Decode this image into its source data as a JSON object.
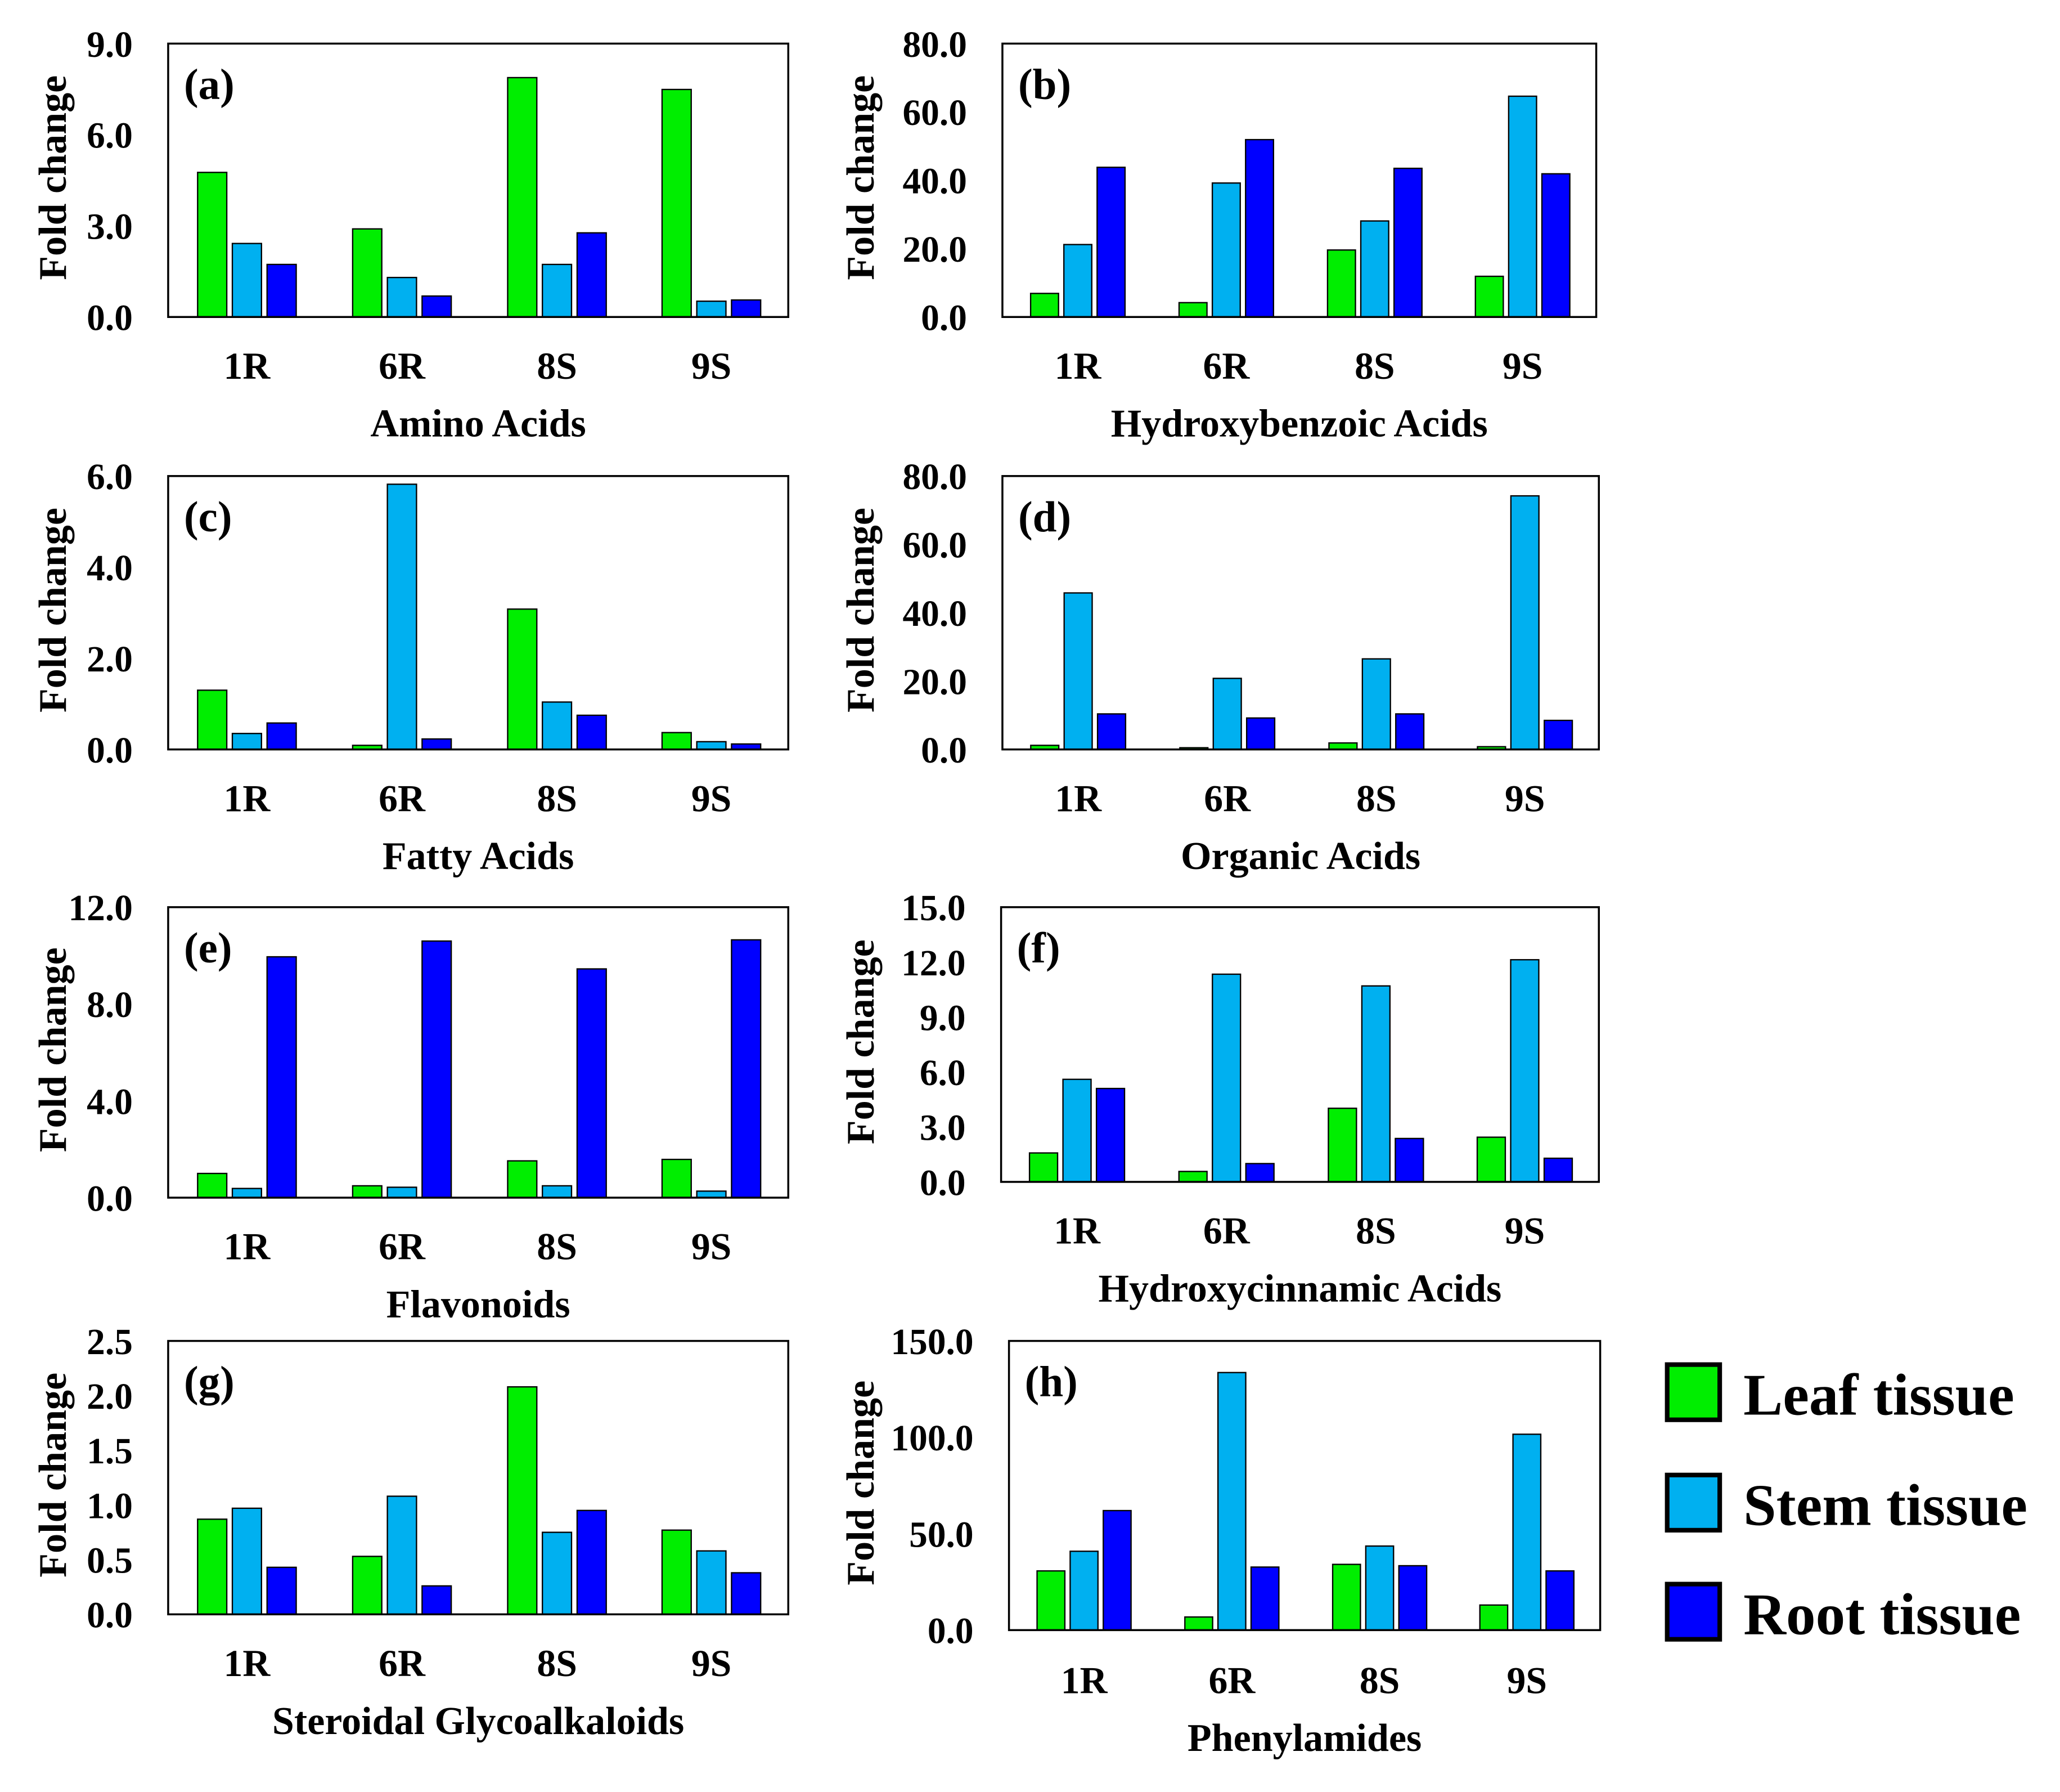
{
  "legend": {
    "items": [
      {
        "label": "Leaf tissue",
        "color": "#00ee00"
      },
      {
        "label": "Stem tissue",
        "color": "#00b0f0"
      },
      {
        "label": "Root tissue",
        "color": "#0000ff"
      }
    ],
    "placement": "right"
  },
  "chart_data": [
    {
      "type": "bar",
      "panel": "(a)",
      "xlabel": "Amino Acids",
      "ylabel": "Fold change",
      "categories": [
        "1R",
        "6R",
        "8S",
        "9S"
      ],
      "ylim": [
        0,
        9
      ],
      "yticks": [
        "0.0",
        "3.0",
        "6.0",
        "9.0"
      ],
      "series": [
        {
          "name": "Leaf tissue",
          "values": [
            4.76,
            2.9,
            7.88,
            7.49
          ]
        },
        {
          "name": "Stem tissue",
          "values": [
            2.42,
            1.3,
            1.73,
            0.52
          ]
        },
        {
          "name": "Root tissue",
          "values": [
            1.73,
            0.69,
            2.77,
            0.56
          ]
        }
      ]
    },
    {
      "type": "bar",
      "panel": "(b)",
      "xlabel": "Hydroxybenzoic Acids",
      "ylabel": "Fold change",
      "categories": [
        "1R",
        "6R",
        "8S",
        "9S"
      ],
      "ylim": [
        0,
        80
      ],
      "yticks": [
        "0.0",
        "20.0",
        "40.0",
        "60.0",
        "80.0"
      ],
      "series": [
        {
          "name": "Leaf tissue",
          "values": [
            6.9,
            4.2,
            19.6,
            11.9
          ]
        },
        {
          "name": "Stem tissue",
          "values": [
            21.2,
            39.2,
            28.1,
            64.6
          ]
        },
        {
          "name": "Root tissue",
          "values": [
            43.8,
            51.9,
            43.5,
            41.9
          ]
        }
      ]
    },
    {
      "type": "bar",
      "panel": "(c)",
      "xlabel": "Fatty Acids",
      "ylabel": "Fold change",
      "categories": [
        "1R",
        "6R",
        "8S",
        "9S"
      ],
      "ylim": [
        0,
        6
      ],
      "yticks": [
        "0.0",
        "2.0",
        "4.0",
        "6.0"
      ],
      "series": [
        {
          "name": "Leaf tissue",
          "values": [
            1.3,
            0.09,
            3.08,
            0.37
          ]
        },
        {
          "name": "Stem tissue",
          "values": [
            0.35,
            5.82,
            1.04,
            0.17
          ]
        },
        {
          "name": "Root tissue",
          "values": [
            0.58,
            0.23,
            0.75,
            0.12
          ]
        }
      ]
    },
    {
      "type": "bar",
      "panel": "(d)",
      "xlabel": "Organic Acids",
      "ylabel": "Fold change",
      "categories": [
        "1R",
        "6R",
        "8S",
        "9S"
      ],
      "ylim": [
        0,
        80
      ],
      "yticks": [
        "0.0",
        "20.0",
        "40.0",
        "60.0",
        "80.0"
      ],
      "series": [
        {
          "name": "Leaf tissue",
          "values": [
            1.2,
            0.5,
            1.9,
            0.8
          ]
        },
        {
          "name": "Stem tissue",
          "values": [
            45.8,
            20.8,
            26.5,
            74.2
          ]
        },
        {
          "name": "Root tissue",
          "values": [
            10.4,
            9.2,
            10.4,
            8.5
          ]
        }
      ]
    },
    {
      "type": "bar",
      "panel": "(e)",
      "xlabel": "Flavonoids",
      "ylabel": "Fold change",
      "categories": [
        "1R",
        "6R",
        "8S",
        "9S"
      ],
      "ylim": [
        0,
        12
      ],
      "yticks": [
        "0.0",
        "4.0",
        "8.0",
        "12.0"
      ],
      "series": [
        {
          "name": "Leaf tissue",
          "values": [
            1.0,
            0.49,
            1.52,
            1.58
          ]
        },
        {
          "name": "Stem tissue",
          "values": [
            0.38,
            0.43,
            0.49,
            0.27
          ]
        },
        {
          "name": "Root tissue",
          "values": [
            9.95,
            10.6,
            9.45,
            10.65
          ]
        }
      ]
    },
    {
      "type": "bar",
      "panel": "(f)",
      "xlabel": "Hydroxycinnamic Acids",
      "ylabel": "Fold change",
      "categories": [
        "1R",
        "6R",
        "8S",
        "9S"
      ],
      "ylim": [
        0,
        15
      ],
      "yticks": [
        "0.0",
        "3.0",
        "6.0",
        "9.0",
        "12.0",
        "15.0"
      ],
      "series": [
        {
          "name": "Leaf tissue",
          "values": [
            1.58,
            0.57,
            4.02,
            2.44
          ]
        },
        {
          "name": "Stem tissue",
          "values": [
            5.6,
            11.34,
            10.7,
            12.13
          ]
        },
        {
          "name": "Root tissue",
          "values": [
            5.1,
            1.0,
            2.37,
            1.29
          ]
        }
      ]
    },
    {
      "type": "bar",
      "panel": "(g)",
      "xlabel": "Steroidal Glycoalkaloids",
      "ylabel": "Fold change",
      "categories": [
        "1R",
        "6R",
        "8S",
        "9S"
      ],
      "ylim": [
        0,
        2.5
      ],
      "yticks": [
        "0.0",
        "0.5",
        "1.0",
        "1.5",
        "2.0",
        "2.5"
      ],
      "series": [
        {
          "name": "Leaf tissue",
          "values": [
            0.87,
            0.53,
            2.08,
            0.77
          ]
        },
        {
          "name": "Stem tissue",
          "values": [
            0.97,
            1.08,
            0.75,
            0.58
          ]
        },
        {
          "name": "Root tissue",
          "values": [
            0.43,
            0.26,
            0.95,
            0.38
          ]
        }
      ]
    },
    {
      "type": "bar",
      "panel": "(h)",
      "xlabel": "Phenylamides",
      "ylabel": "Fold change",
      "categories": [
        "1R",
        "6R",
        "8S",
        "9S"
      ],
      "ylim": [
        0,
        150
      ],
      "yticks": [
        "0.0",
        "50.0",
        "100.0",
        "150.0"
      ],
      "series": [
        {
          "name": "Leaf tissue",
          "values": [
            30.7,
            6.8,
            34.1,
            13.0
          ]
        },
        {
          "name": "Stem tissue",
          "values": [
            40.9,
            133.6,
            43.6,
            101.6
          ]
        },
        {
          "name": "Root tissue",
          "values": [
            62.0,
            32.7,
            33.4,
            30.7
          ]
        }
      ]
    }
  ]
}
